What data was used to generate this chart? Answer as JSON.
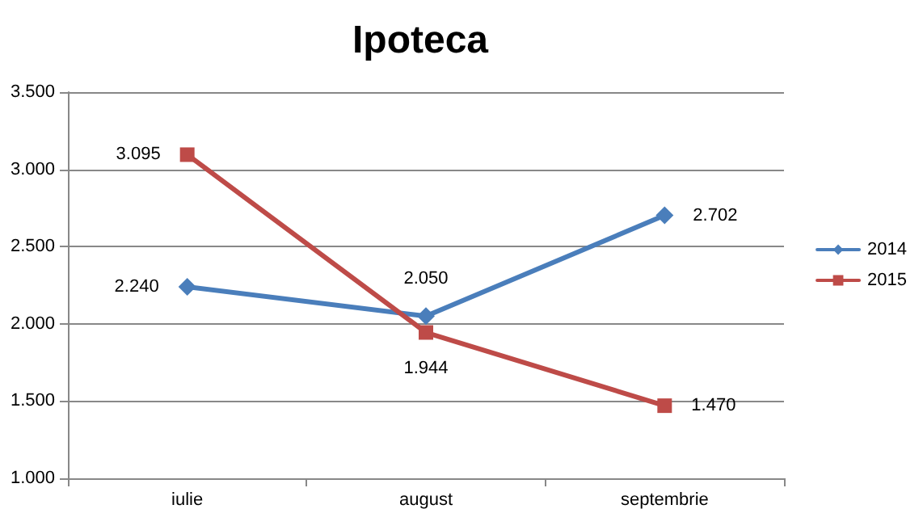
{
  "chart_data": {
    "type": "line",
    "title": "Ipoteca",
    "categories": [
      "iulie",
      "august",
      "septembrie"
    ],
    "series": [
      {
        "name": "2014",
        "color": "#4a7ebb",
        "marker": "diamond",
        "values": [
          2240,
          2050,
          2702
        ],
        "value_labels": [
          "2.240",
          "2.050",
          "2.702"
        ]
      },
      {
        "name": "2015",
        "color": "#be4b48",
        "marker": "square",
        "values": [
          3095,
          1944,
          1470
        ],
        "value_labels": [
          "3.095",
          "1.944",
          "1.470"
        ]
      }
    ],
    "ylim": [
      1000,
      3500
    ],
    "yticks": [
      {
        "value": 1000,
        "label": "1.000"
      },
      {
        "value": 1500,
        "label": "1.500"
      },
      {
        "value": 2000,
        "label": "2.000"
      },
      {
        "value": 2500,
        "label": "2.500"
      },
      {
        "value": 3000,
        "label": "3.000"
      },
      {
        "value": 3500,
        "label": "3.500"
      }
    ],
    "grid": "y",
    "legend": "right",
    "line_style": "solid"
  }
}
